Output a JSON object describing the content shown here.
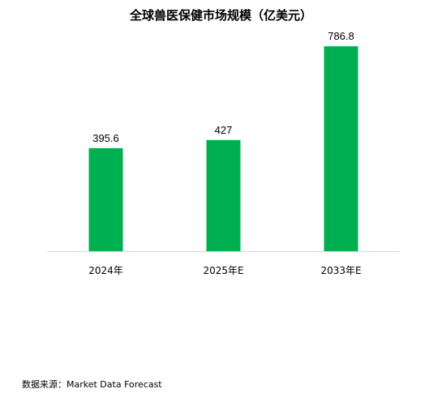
{
  "chart_data": {
    "type": "bar",
    "title": "全球兽医保健市场规模（亿美元）",
    "categories": [
      "2024年",
      "2025年E",
      "2033年E"
    ],
    "values": [
      395.6,
      427,
      786.8
    ],
    "data_labels": [
      "395.6",
      "427",
      "786.8"
    ],
    "xlabel": "",
    "ylabel": "",
    "ylim": [
      0,
      840
    ],
    "grid": false,
    "legend": "none",
    "bar_color": "#00B050",
    "axis_color": "#D9D9D9"
  },
  "footer": {
    "source": "数据来源：Market Data Forecast"
  }
}
